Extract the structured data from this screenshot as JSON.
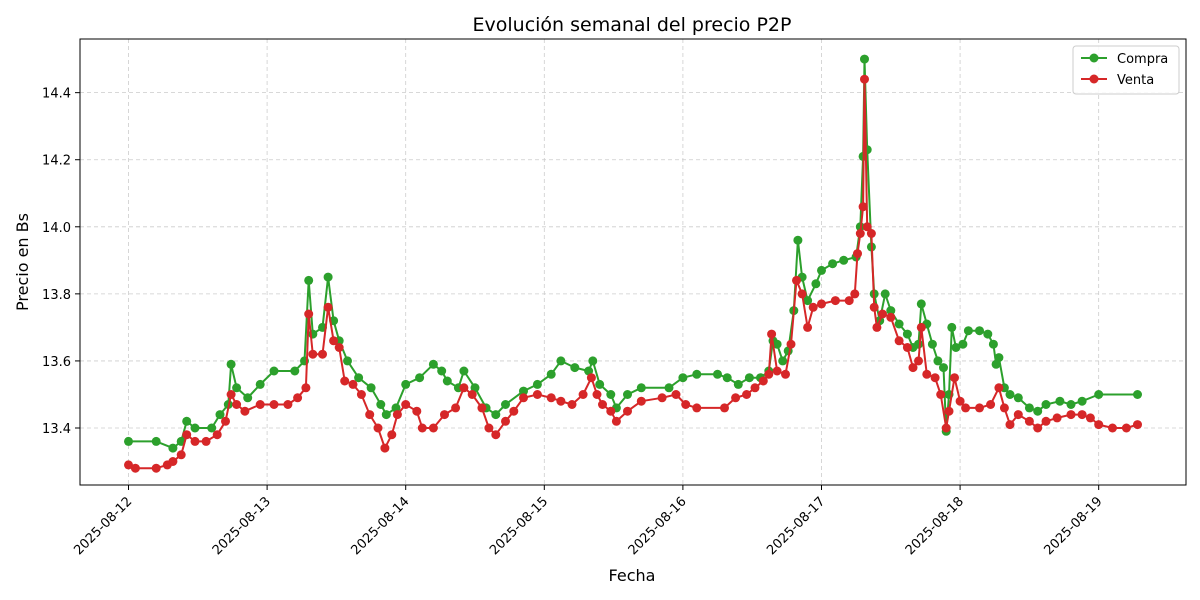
{
  "chart_data": {
    "type": "line",
    "title": "Evolución semanal del precio P2P",
    "xlabel": "Fecha",
    "ylabel": "Precio en Bs",
    "x_ticks": [
      "2025-08-12",
      "2025-08-13",
      "2025-08-14",
      "2025-08-15",
      "2025-08-16",
      "2025-08-17",
      "2025-08-18",
      "2025-08-19"
    ],
    "y_ticks": [
      "13.4",
      "13.6",
      "13.8",
      "14.0",
      "14.2",
      "14.4"
    ],
    "xlim": [
      -0.35,
      7.63
    ],
    "ylim": [
      13.23,
      14.56
    ],
    "grid": true,
    "legend_position": "top-right",
    "series": [
      {
        "name": "Compra",
        "color": "#2ca02c",
        "points": [
          [
            0.0,
            13.36
          ],
          [
            0.2,
            13.36
          ],
          [
            0.32,
            13.34
          ],
          [
            0.38,
            13.36
          ],
          [
            0.42,
            13.42
          ],
          [
            0.48,
            13.4
          ],
          [
            0.6,
            13.4
          ],
          [
            0.66,
            13.44
          ],
          [
            0.72,
            13.47
          ],
          [
            0.74,
            13.59
          ],
          [
            0.78,
            13.52
          ],
          [
            0.86,
            13.49
          ],
          [
            0.95,
            13.53
          ],
          [
            1.05,
            13.57
          ],
          [
            1.2,
            13.57
          ],
          [
            1.27,
            13.6
          ],
          [
            1.3,
            13.84
          ],
          [
            1.33,
            13.68
          ],
          [
            1.4,
            13.7
          ],
          [
            1.44,
            13.85
          ],
          [
            1.48,
            13.72
          ],
          [
            1.52,
            13.66
          ],
          [
            1.58,
            13.6
          ],
          [
            1.66,
            13.55
          ],
          [
            1.75,
            13.52
          ],
          [
            1.82,
            13.47
          ],
          [
            1.86,
            13.44
          ],
          [
            1.93,
            13.46
          ],
          [
            2.0,
            13.53
          ],
          [
            2.1,
            13.55
          ],
          [
            2.2,
            13.59
          ],
          [
            2.26,
            13.57
          ],
          [
            2.3,
            13.54
          ],
          [
            2.38,
            13.52
          ],
          [
            2.42,
            13.57
          ],
          [
            2.5,
            13.52
          ],
          [
            2.58,
            13.46
          ],
          [
            2.65,
            13.44
          ],
          [
            2.72,
            13.47
          ],
          [
            2.85,
            13.51
          ],
          [
            2.95,
            13.53
          ],
          [
            3.05,
            13.56
          ],
          [
            3.12,
            13.6
          ],
          [
            3.22,
            13.58
          ],
          [
            3.32,
            13.57
          ],
          [
            3.35,
            13.6
          ],
          [
            3.4,
            13.53
          ],
          [
            3.48,
            13.5
          ],
          [
            3.52,
            13.46
          ],
          [
            3.6,
            13.5
          ],
          [
            3.7,
            13.52
          ],
          [
            3.9,
            13.52
          ],
          [
            4.0,
            13.55
          ],
          [
            4.1,
            13.56
          ],
          [
            4.25,
            13.56
          ],
          [
            4.32,
            13.55
          ],
          [
            4.4,
            13.53
          ],
          [
            4.48,
            13.55
          ],
          [
            4.56,
            13.55
          ],
          [
            4.62,
            13.57
          ],
          [
            4.65,
            13.66
          ],
          [
            4.68,
            13.65
          ],
          [
            4.72,
            13.6
          ],
          [
            4.76,
            13.63
          ],
          [
            4.8,
            13.75
          ],
          [
            4.83,
            13.96
          ],
          [
            4.86,
            13.85
          ],
          [
            4.9,
            13.78
          ],
          [
            4.96,
            13.83
          ],
          [
            5.0,
            13.87
          ],
          [
            5.08,
            13.89
          ],
          [
            5.16,
            13.9
          ],
          [
            5.25,
            13.91
          ],
          [
            5.28,
            14.0
          ],
          [
            5.3,
            14.21
          ],
          [
            5.31,
            14.5
          ],
          [
            5.33,
            14.23
          ],
          [
            5.36,
            13.94
          ],
          [
            5.38,
            13.8
          ],
          [
            5.42,
            13.72
          ],
          [
            5.46,
            13.8
          ],
          [
            5.5,
            13.75
          ],
          [
            5.56,
            13.71
          ],
          [
            5.62,
            13.68
          ],
          [
            5.66,
            13.64
          ],
          [
            5.7,
            13.65
          ],
          [
            5.72,
            13.77
          ],
          [
            5.76,
            13.71
          ],
          [
            5.8,
            13.65
          ],
          [
            5.84,
            13.6
          ],
          [
            5.88,
            13.58
          ],
          [
            5.9,
            13.39
          ],
          [
            5.92,
            13.5
          ],
          [
            5.94,
            13.7
          ],
          [
            5.97,
            13.64
          ],
          [
            6.02,
            13.65
          ],
          [
            6.06,
            13.69
          ],
          [
            6.14,
            13.69
          ],
          [
            6.2,
            13.68
          ],
          [
            6.24,
            13.65
          ],
          [
            6.26,
            13.59
          ],
          [
            6.28,
            13.61
          ],
          [
            6.32,
            13.52
          ],
          [
            6.36,
            13.5
          ],
          [
            6.42,
            13.49
          ],
          [
            6.5,
            13.46
          ],
          [
            6.56,
            13.45
          ],
          [
            6.62,
            13.47
          ],
          [
            6.72,
            13.48
          ],
          [
            6.8,
            13.47
          ],
          [
            6.88,
            13.48
          ],
          [
            7.0,
            13.5
          ],
          [
            7.28,
            13.5
          ]
        ]
      },
      {
        "name": "Venta",
        "color": "#d62728",
        "points": [
          [
            0.0,
            13.29
          ],
          [
            0.05,
            13.28
          ],
          [
            0.2,
            13.28
          ],
          [
            0.28,
            13.29
          ],
          [
            0.32,
            13.3
          ],
          [
            0.38,
            13.32
          ],
          [
            0.42,
            13.38
          ],
          [
            0.48,
            13.36
          ],
          [
            0.56,
            13.36
          ],
          [
            0.64,
            13.38
          ],
          [
            0.7,
            13.42
          ],
          [
            0.74,
            13.5
          ],
          [
            0.78,
            13.47
          ],
          [
            0.84,
            13.45
          ],
          [
            0.95,
            13.47
          ],
          [
            1.05,
            13.47
          ],
          [
            1.15,
            13.47
          ],
          [
            1.22,
            13.49
          ],
          [
            1.28,
            13.52
          ],
          [
            1.3,
            13.74
          ],
          [
            1.33,
            13.62
          ],
          [
            1.4,
            13.62
          ],
          [
            1.44,
            13.76
          ],
          [
            1.48,
            13.66
          ],
          [
            1.52,
            13.64
          ],
          [
            1.56,
            13.54
          ],
          [
            1.62,
            13.53
          ],
          [
            1.68,
            13.5
          ],
          [
            1.74,
            13.44
          ],
          [
            1.8,
            13.4
          ],
          [
            1.85,
            13.34
          ],
          [
            1.9,
            13.38
          ],
          [
            1.94,
            13.44
          ],
          [
            2.0,
            13.47
          ],
          [
            2.08,
            13.45
          ],
          [
            2.12,
            13.4
          ],
          [
            2.2,
            13.4
          ],
          [
            2.28,
            13.44
          ],
          [
            2.36,
            13.46
          ],
          [
            2.42,
            13.52
          ],
          [
            2.48,
            13.5
          ],
          [
            2.55,
            13.46
          ],
          [
            2.6,
            13.4
          ],
          [
            2.65,
            13.38
          ],
          [
            2.72,
            13.42
          ],
          [
            2.78,
            13.45
          ],
          [
            2.85,
            13.49
          ],
          [
            2.95,
            13.5
          ],
          [
            3.05,
            13.49
          ],
          [
            3.12,
            13.48
          ],
          [
            3.2,
            13.47
          ],
          [
            3.28,
            13.5
          ],
          [
            3.34,
            13.55
          ],
          [
            3.38,
            13.5
          ],
          [
            3.42,
            13.47
          ],
          [
            3.48,
            13.45
          ],
          [
            3.52,
            13.42
          ],
          [
            3.6,
            13.45
          ],
          [
            3.7,
            13.48
          ],
          [
            3.85,
            13.49
          ],
          [
            3.95,
            13.5
          ],
          [
            4.02,
            13.47
          ],
          [
            4.1,
            13.46
          ],
          [
            4.3,
            13.46
          ],
          [
            4.38,
            13.49
          ],
          [
            4.46,
            13.5
          ],
          [
            4.52,
            13.52
          ],
          [
            4.58,
            13.54
          ],
          [
            4.62,
            13.56
          ],
          [
            4.64,
            13.68
          ],
          [
            4.68,
            13.57
          ],
          [
            4.74,
            13.56
          ],
          [
            4.78,
            13.65
          ],
          [
            4.82,
            13.84
          ],
          [
            4.86,
            13.8
          ],
          [
            4.9,
            13.7
          ],
          [
            4.94,
            13.76
          ],
          [
            5.0,
            13.77
          ],
          [
            5.1,
            13.78
          ],
          [
            5.2,
            13.78
          ],
          [
            5.24,
            13.8
          ],
          [
            5.26,
            13.92
          ],
          [
            5.28,
            13.98
          ],
          [
            5.3,
            14.06
          ],
          [
            5.31,
            14.44
          ],
          [
            5.33,
            14.0
          ],
          [
            5.36,
            13.98
          ],
          [
            5.38,
            13.76
          ],
          [
            5.4,
            13.7
          ],
          [
            5.44,
            13.74
          ],
          [
            5.5,
            13.73
          ],
          [
            5.56,
            13.66
          ],
          [
            5.62,
            13.64
          ],
          [
            5.66,
            13.58
          ],
          [
            5.7,
            13.6
          ],
          [
            5.72,
            13.7
          ],
          [
            5.76,
            13.56
          ],
          [
            5.82,
            13.55
          ],
          [
            5.86,
            13.5
          ],
          [
            5.9,
            13.4
          ],
          [
            5.92,
            13.45
          ],
          [
            5.96,
            13.55
          ],
          [
            6.0,
            13.48
          ],
          [
            6.04,
            13.46
          ],
          [
            6.14,
            13.46
          ],
          [
            6.22,
            13.47
          ],
          [
            6.28,
            13.52
          ],
          [
            6.32,
            13.46
          ],
          [
            6.36,
            13.41
          ],
          [
            6.42,
            13.44
          ],
          [
            6.5,
            13.42
          ],
          [
            6.56,
            13.4
          ],
          [
            6.62,
            13.42
          ],
          [
            6.7,
            13.43
          ],
          [
            6.8,
            13.44
          ],
          [
            6.88,
            13.44
          ],
          [
            6.94,
            13.43
          ],
          [
            7.0,
            13.41
          ],
          [
            7.1,
            13.4
          ],
          [
            7.2,
            13.4
          ],
          [
            7.28,
            13.41
          ]
        ]
      }
    ]
  }
}
